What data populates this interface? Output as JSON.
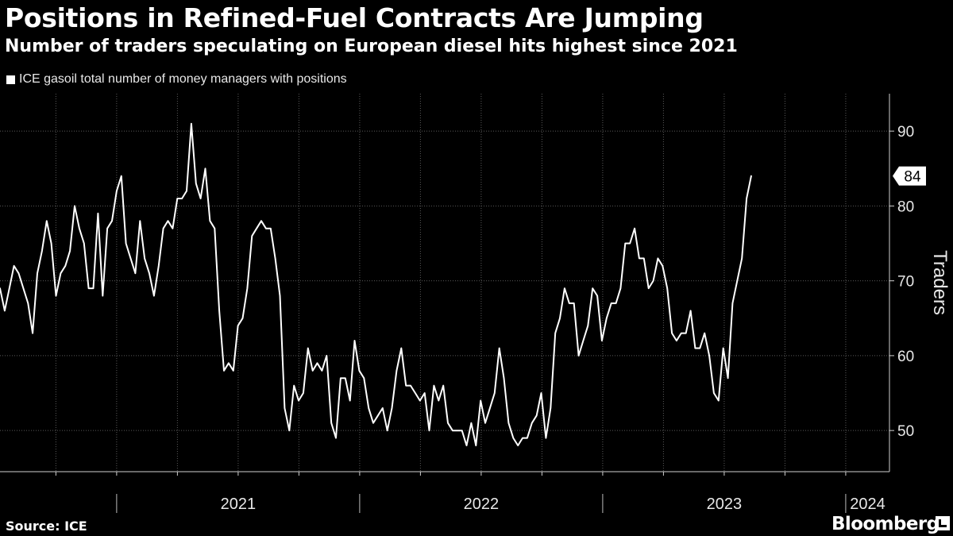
{
  "header": {
    "title": "Positions in Refined-Fuel Contracts Are Jumping",
    "subtitle": "Number of traders speculating on European diesel hits highest since 2021"
  },
  "legend": {
    "label": "ICE gasoil total number of money managers with positions"
  },
  "footer": {
    "source": "Source: ICE",
    "brand": "Bloomberg"
  },
  "colors": {
    "background": "#000000",
    "line": "#ffffff",
    "grid": "#5a5a5a",
    "text": "#ffffff"
  },
  "chart_data": {
    "type": "line",
    "title": "Positions in Refined-Fuel Contracts Are Jumping",
    "subtitle": "Number of traders speculating on European diesel hits highest since 2021",
    "ylabel": "Traders",
    "xlabel": "",
    "ylim": [
      44.5,
      95
    ],
    "yticks": [
      50,
      60,
      70,
      80,
      90
    ],
    "x_range": [
      2020.52,
      2024.18
    ],
    "xticks": [
      {
        "label": "2021",
        "year_start": 2021
      },
      {
        "label": "2022",
        "year_start": 2022
      },
      {
        "label": "2023",
        "year_start": 2023
      },
      {
        "label": "2024",
        "year_start": 2024
      }
    ],
    "last_value_label": "84",
    "grid": true,
    "series": [
      {
        "name": "ICE gasoil total number of money managers with positions",
        "frequency": "weekly",
        "start": 2020.52,
        "step_years": 0.0192,
        "values": [
          69,
          66,
          69,
          72,
          71,
          69,
          67,
          63,
          71,
          74,
          78,
          75,
          68,
          71,
          72,
          74,
          80,
          77,
          75,
          69,
          69,
          79,
          68,
          77,
          78,
          82,
          84,
          75,
          73,
          71,
          78,
          73,
          71,
          68,
          72,
          77,
          78,
          77,
          81,
          81,
          82,
          91,
          83,
          81,
          85,
          78,
          77,
          66,
          58,
          59,
          58,
          64,
          65,
          69,
          76,
          77,
          78,
          77,
          77,
          73,
          68,
          53,
          50,
          56,
          54,
          55,
          61,
          58,
          59,
          58,
          60,
          51,
          49,
          57,
          57,
          54,
          62,
          58,
          57,
          53,
          51,
          52,
          53,
          50,
          53,
          58,
          61,
          56,
          56,
          55,
          54,
          55,
          50,
          56,
          54,
          56,
          51,
          50,
          50,
          50,
          48,
          51,
          48,
          54,
          51,
          53,
          55,
          61,
          57,
          51,
          49,
          48,
          49,
          49,
          51,
          52,
          55,
          49,
          53,
          63,
          65,
          69,
          67,
          67,
          60,
          62,
          64,
          69,
          68,
          62,
          65,
          67,
          67,
          69,
          75,
          75,
          77,
          73,
          73,
          69,
          70,
          73,
          72,
          69,
          63,
          62,
          63,
          63,
          66,
          61,
          61,
          63,
          60,
          55,
          54,
          61,
          57,
          67,
          70,
          73,
          81,
          84
        ]
      }
    ]
  }
}
